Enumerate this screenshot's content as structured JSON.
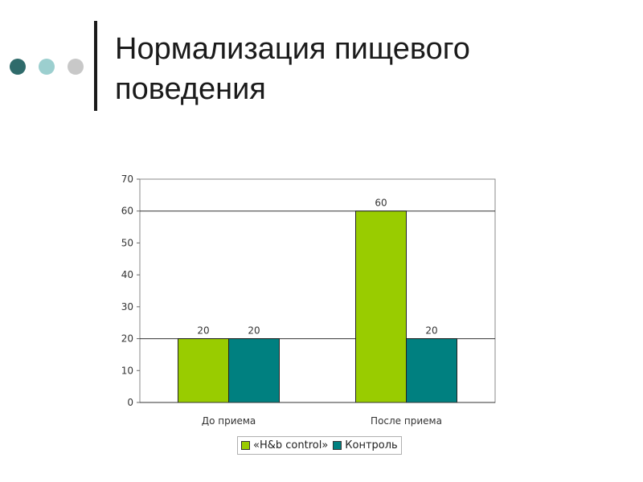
{
  "slide": {
    "title": "Нормализация пищевого поведения",
    "dot_colors": [
      "#2f6b6b",
      "#9ccfcf",
      "#c8c8c8"
    ]
  },
  "chart_data": {
    "type": "bar",
    "categories": [
      "До приема",
      "После приема"
    ],
    "series": [
      {
        "name": "«H&b control»",
        "values": [
          20,
          60
        ],
        "color": "#99cc00"
      },
      {
        "name": "Контроль",
        "values": [
          20,
          20
        ],
        "color": "#008080"
      }
    ],
    "ylim": [
      0,
      70
    ],
    "yticks": [
      0,
      10,
      20,
      30,
      40,
      50,
      60,
      70
    ],
    "gridlines": [
      20,
      60
    ],
    "data_labels": true,
    "legend_position": "bottom"
  }
}
